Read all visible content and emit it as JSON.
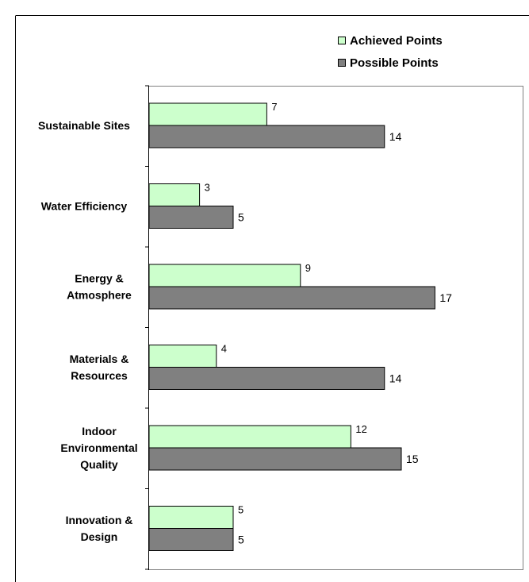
{
  "chart_data": {
    "type": "bar",
    "orientation": "horizontal",
    "categories": [
      [
        "Sustainable Sites"
      ],
      [
        "Water Efficiency"
      ],
      [
        "Energy &",
        "Atmosphere"
      ],
      [
        "Materials &",
        "Resources"
      ],
      [
        "Indoor",
        "Environmental",
        "Quality"
      ],
      [
        "Innovation &",
        "Design"
      ]
    ],
    "series": [
      {
        "name": "Achieved Points",
        "values": [
          7,
          3,
          9,
          4,
          12,
          5
        ],
        "color": "#ccffcc"
      },
      {
        "name": "Possible Points",
        "values": [
          14,
          5,
          17,
          14,
          15,
          5
        ],
        "color": "#808080"
      }
    ],
    "xlim": [
      0,
      18
    ],
    "legend_position": "top-right",
    "grid": false,
    "plot_background": "#ffffff",
    "border_color": "#808080"
  }
}
